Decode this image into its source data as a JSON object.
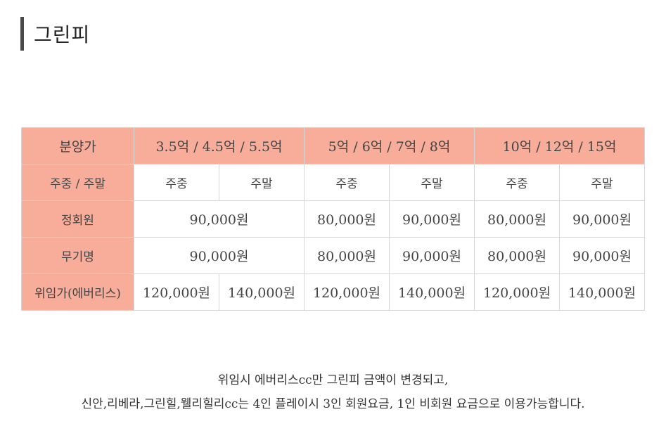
{
  "title": "그린피",
  "table": {
    "header": {
      "col0": "분양가",
      "groups": [
        "3.5억 / 4.5억 / 5.5억",
        "5억 / 6억 / 7억 / 8억",
        "10억 / 12억 / 15억"
      ]
    },
    "subheader": {
      "col0": "주중 / 주말",
      "cells": [
        "주중",
        "주말",
        "주중",
        "주말",
        "주중",
        "주말"
      ]
    },
    "rows": [
      {
        "label": "정회원",
        "g1": "90,000원",
        "g2a": "80,000원",
        "g2b": "90,000원",
        "g3a": "80,000원",
        "g3b": "90,000원"
      },
      {
        "label": "무기명",
        "g1": "90,000원",
        "g2a": "80,000원",
        "g2b": "90,000원",
        "g3a": "80,000원",
        "g3b": "90,000원"
      },
      {
        "label": "위임가(에버리스)",
        "cells": [
          "120,000원",
          "140,000원",
          "120,000원",
          "140,000원",
          "120,000원",
          "140,000원"
        ]
      }
    ]
  },
  "notes": [
    "위임시 에버리스cc만 그린피 금액이 변경되고,",
    "신안,리베라,그린힐,웰리힐리cc는 4인 플레이시 3인 회원요금, 1인 비회원 요금으로 이용가능합니다."
  ]
}
